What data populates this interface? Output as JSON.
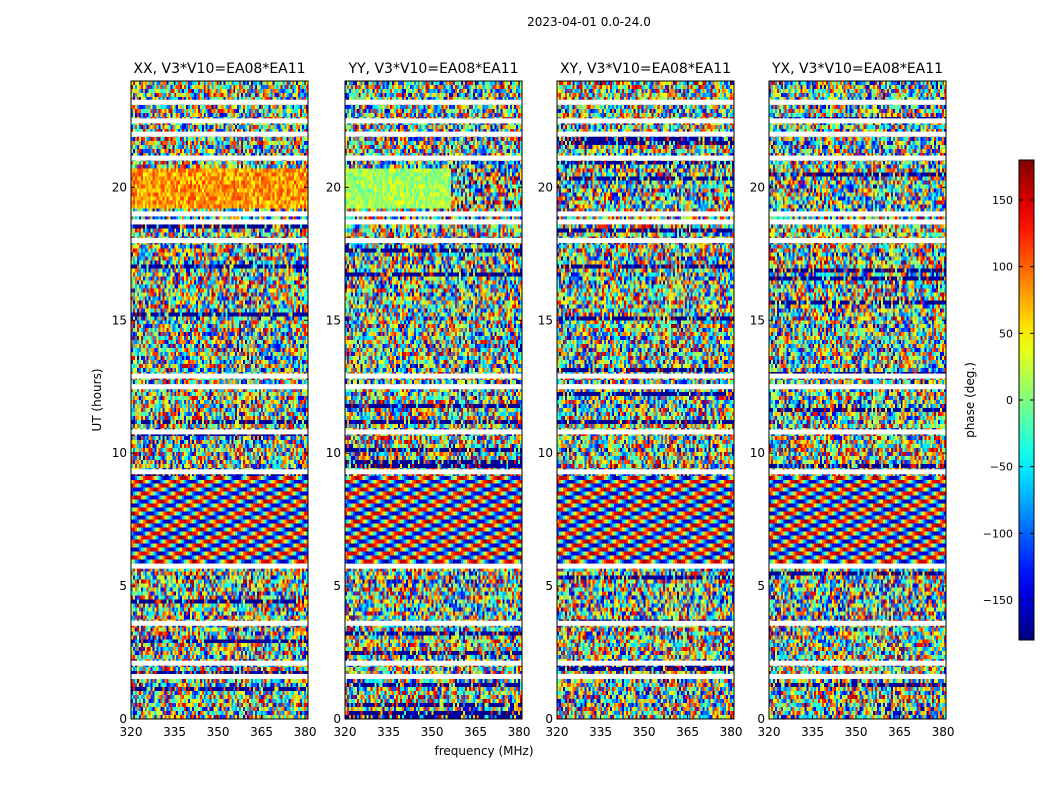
{
  "figure": {
    "suptitle": "2023-04-01 0.0-24.0"
  },
  "chart_data": {
    "type": "heatmap",
    "xlabel": "frequency (MHz)",
    "ylabel": "UT (hours)",
    "xlim": [
      320,
      381
    ],
    "ylim": [
      0,
      24
    ],
    "xticks": [
      320,
      335,
      350,
      365,
      380
    ],
    "yticks": [
      0,
      5,
      10,
      15,
      20
    ],
    "colorbar": {
      "label": "phase (deg.)",
      "range": [
        -180,
        180
      ],
      "ticks": [
        150,
        100,
        50,
        0,
        -50,
        -100,
        -150
      ],
      "tick_labels": [
        "150",
        "100",
        "50",
        "0",
        "−50",
        "−100",
        "−150"
      ],
      "colormap": "jet",
      "colormap_stops": [
        "#000080",
        "#0000ff",
        "#00ffff",
        "#ffff00",
        "#ff0000",
        "#800000"
      ]
    },
    "flagged_color": "#ffffff",
    "panels": [
      {
        "title": "XX, V3*V10=EA08*EA11",
        "polarization": "XX",
        "baseline": "V3*V10=EA08*EA11"
      },
      {
        "title": "YY, V3*V10=EA08*EA11",
        "polarization": "YY",
        "baseline": "V3*V10=EA08*EA11"
      },
      {
        "title": "XY, V3*V10=EA08*EA11",
        "polarization": "XY",
        "baseline": "V3*V10=EA08*EA11"
      },
      {
        "title": "YX, V3*V10=EA08*EA11",
        "polarization": "YX",
        "baseline": "V3*V10=EA08*EA11"
      }
    ],
    "flagged_ut_hours": [
      23.2,
      22.5,
      22.0,
      21.1,
      19.0,
      18.7,
      18.0,
      12.9,
      12.5,
      10.8,
      9.3,
      5.75,
      3.6,
      2.1,
      1.6
    ]
  }
}
